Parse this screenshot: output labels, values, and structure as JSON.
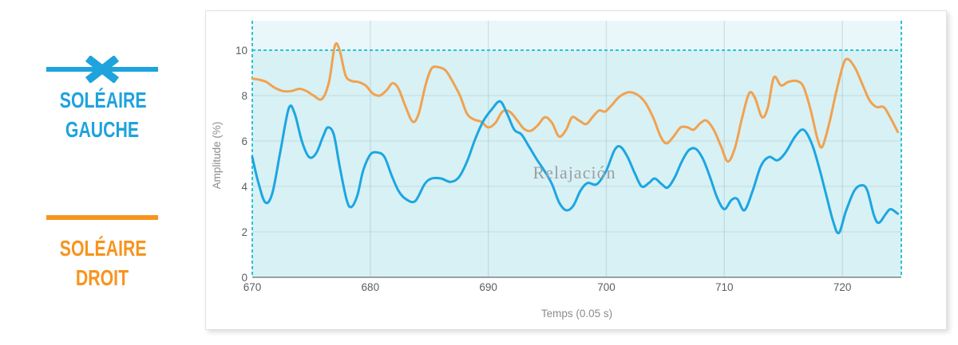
{
  "page": {
    "background": "#ffffff"
  },
  "legend": {
    "items": [
      {
        "id": "soleaire-gauche",
        "label_line1": "SOLÉAIRE",
        "label_line2": "GAUCHE",
        "color": "#1ea3dd",
        "marker": "x-on-line"
      },
      {
        "id": "soleaire-droit",
        "label_line1": "SOLÉAIRE",
        "label_line2": "DROIT",
        "color": "#f7941e",
        "marker": "line"
      }
    ]
  },
  "chart_data": {
    "type": "line",
    "title": "",
    "xlabel": "Temps (0.05 s)",
    "ylabel": "Amplitude (%)",
    "xlim": [
      670,
      725
    ],
    "ylim": [
      0,
      11.3
    ],
    "x_ticks": [
      670,
      680,
      690,
      700,
      710,
      720
    ],
    "y_ticks": [
      0,
      2,
      4,
      6,
      8,
      10
    ],
    "grid": true,
    "legend_position": "outside-left",
    "colors": {
      "axis_line": "#9aa0a0",
      "grid_line": "rgba(80,110,120,0.16)",
      "tick_label": "#5a5f63",
      "axis_title": "#8c8c8c"
    },
    "annotation_region": {
      "label": "Relajación",
      "x_start": 670,
      "x_end": 725,
      "y_threshold": 10,
      "fill_below_threshold": "#d8f1f5",
      "fill_above_threshold": "#e9f7fa",
      "border_color": "#2cc3d4",
      "border_style": "dashed",
      "label_color": "#9aa0a3",
      "label_x": 697.3,
      "label_y": 4.6
    },
    "series": [
      {
        "name": "Soléaire droit",
        "color": "#f0a250",
        "points": [
          [
            670,
            8.75
          ],
          [
            670.6,
            8.7
          ],
          [
            671.2,
            8.6
          ],
          [
            671.9,
            8.35
          ],
          [
            672.6,
            8.2
          ],
          [
            673.3,
            8.2
          ],
          [
            674.0,
            8.3
          ],
          [
            674.6,
            8.2
          ],
          [
            675.2,
            8.0
          ],
          [
            675.9,
            7.85
          ],
          [
            676.5,
            8.6
          ],
          [
            677.0,
            10.2
          ],
          [
            677.4,
            10.0
          ],
          [
            677.9,
            8.9
          ],
          [
            678.4,
            8.65
          ],
          [
            679.0,
            8.6
          ],
          [
            679.6,
            8.45
          ],
          [
            680.2,
            8.1
          ],
          [
            680.8,
            8.0
          ],
          [
            681.4,
            8.25
          ],
          [
            681.9,
            8.55
          ],
          [
            682.4,
            8.3
          ],
          [
            683.0,
            7.5
          ],
          [
            683.6,
            6.85
          ],
          [
            684.1,
            7.2
          ],
          [
            684.7,
            8.5
          ],
          [
            685.2,
            9.2
          ],
          [
            685.8,
            9.25
          ],
          [
            686.4,
            9.1
          ],
          [
            687.0,
            8.6
          ],
          [
            687.6,
            8.0
          ],
          [
            688.2,
            7.2
          ],
          [
            688.8,
            6.95
          ],
          [
            689.4,
            6.85
          ],
          [
            690.0,
            6.6
          ],
          [
            690.6,
            6.8
          ],
          [
            691.2,
            7.3
          ],
          [
            691.8,
            7.3
          ],
          [
            692.4,
            6.95
          ],
          [
            693.0,
            6.55
          ],
          [
            693.6,
            6.45
          ],
          [
            694.2,
            6.7
          ],
          [
            694.8,
            7.05
          ],
          [
            695.4,
            6.8
          ],
          [
            696.0,
            6.2
          ],
          [
            696.6,
            6.5
          ],
          [
            697.1,
            7.05
          ],
          [
            697.7,
            6.9
          ],
          [
            698.3,
            6.75
          ],
          [
            698.9,
            7.1
          ],
          [
            699.4,
            7.35
          ],
          [
            699.9,
            7.3
          ],
          [
            700.5,
            7.6
          ],
          [
            701.1,
            7.95
          ],
          [
            701.9,
            8.15
          ],
          [
            702.6,
            8.05
          ],
          [
            703.3,
            7.7
          ],
          [
            704.0,
            7.0
          ],
          [
            704.6,
            6.2
          ],
          [
            705.1,
            5.9
          ],
          [
            705.7,
            6.2
          ],
          [
            706.3,
            6.6
          ],
          [
            706.9,
            6.6
          ],
          [
            707.4,
            6.5
          ],
          [
            708.0,
            6.8
          ],
          [
            708.5,
            6.9
          ],
          [
            709.1,
            6.5
          ],
          [
            709.7,
            5.8
          ],
          [
            710.3,
            5.1
          ],
          [
            710.9,
            5.7
          ],
          [
            711.5,
            7.0
          ],
          [
            712.1,
            8.1
          ],
          [
            712.6,
            7.9
          ],
          [
            713.2,
            7.05
          ],
          [
            713.7,
            7.5
          ],
          [
            714.2,
            8.8
          ],
          [
            714.8,
            8.45
          ],
          [
            715.4,
            8.6
          ],
          [
            716.1,
            8.65
          ],
          [
            716.7,
            8.4
          ],
          [
            717.3,
            7.4
          ],
          [
            717.9,
            6.1
          ],
          [
            718.3,
            5.75
          ],
          [
            718.9,
            6.8
          ],
          [
            719.5,
            8.2
          ],
          [
            720.1,
            9.4
          ],
          [
            720.5,
            9.6
          ],
          [
            721.1,
            9.2
          ],
          [
            721.7,
            8.5
          ],
          [
            722.3,
            7.8
          ],
          [
            722.9,
            7.5
          ],
          [
            723.5,
            7.5
          ],
          [
            724.0,
            7.1
          ],
          [
            724.7,
            6.4
          ]
        ]
      },
      {
        "name": "Soléaire gauche",
        "color": "#1ca6e2",
        "points": [
          [
            670,
            5.3
          ],
          [
            670.5,
            4.2
          ],
          [
            671.1,
            3.3
          ],
          [
            671.7,
            3.7
          ],
          [
            672.4,
            5.6
          ],
          [
            673.1,
            7.45
          ],
          [
            673.6,
            7.2
          ],
          [
            674.2,
            6.0
          ],
          [
            674.8,
            5.3
          ],
          [
            675.4,
            5.45
          ],
          [
            676.0,
            6.2
          ],
          [
            676.4,
            6.6
          ],
          [
            676.9,
            6.3
          ],
          [
            677.4,
            4.9
          ],
          [
            678.0,
            3.4
          ],
          [
            678.4,
            3.1
          ],
          [
            678.9,
            3.6
          ],
          [
            679.4,
            4.7
          ],
          [
            680.0,
            5.4
          ],
          [
            680.6,
            5.5
          ],
          [
            681.2,
            5.3
          ],
          [
            681.8,
            4.5
          ],
          [
            682.4,
            3.8
          ],
          [
            683.0,
            3.45
          ],
          [
            683.8,
            3.35
          ],
          [
            684.6,
            4.1
          ],
          [
            685.2,
            4.35
          ],
          [
            686.0,
            4.35
          ],
          [
            686.8,
            4.2
          ],
          [
            687.5,
            4.4
          ],
          [
            688.2,
            5.1
          ],
          [
            688.9,
            6.1
          ],
          [
            689.6,
            6.9
          ],
          [
            690.3,
            7.4
          ],
          [
            691.0,
            7.75
          ],
          [
            691.6,
            7.2
          ],
          [
            692.2,
            6.5
          ],
          [
            692.8,
            6.3
          ],
          [
            693.4,
            5.8
          ],
          [
            694.1,
            5.2
          ],
          [
            694.8,
            4.65
          ],
          [
            695.4,
            4.1
          ],
          [
            696.0,
            3.3
          ],
          [
            696.6,
            2.95
          ],
          [
            697.2,
            3.15
          ],
          [
            697.8,
            3.8
          ],
          [
            698.4,
            4.15
          ],
          [
            699.2,
            4.1
          ],
          [
            700.0,
            4.7
          ],
          [
            700.7,
            5.6
          ],
          [
            701.2,
            5.75
          ],
          [
            701.8,
            5.3
          ],
          [
            702.4,
            4.6
          ],
          [
            703.0,
            4.0
          ],
          [
            703.6,
            4.15
          ],
          [
            704.1,
            4.35
          ],
          [
            704.7,
            4.1
          ],
          [
            705.2,
            3.95
          ],
          [
            705.8,
            4.4
          ],
          [
            706.4,
            5.1
          ],
          [
            707.0,
            5.6
          ],
          [
            707.6,
            5.65
          ],
          [
            708.2,
            5.2
          ],
          [
            708.8,
            4.4
          ],
          [
            709.4,
            3.5
          ],
          [
            710.0,
            3.0
          ],
          [
            710.6,
            3.4
          ],
          [
            711.1,
            3.45
          ],
          [
            711.7,
            2.95
          ],
          [
            712.4,
            3.8
          ],
          [
            713.1,
            4.9
          ],
          [
            713.8,
            5.3
          ],
          [
            714.5,
            5.15
          ],
          [
            715.2,
            5.5
          ],
          [
            716.0,
            6.2
          ],
          [
            716.7,
            6.5
          ],
          [
            717.4,
            5.9
          ],
          [
            718.0,
            4.9
          ],
          [
            718.6,
            3.7
          ],
          [
            719.2,
            2.5
          ],
          [
            719.7,
            1.95
          ],
          [
            720.3,
            2.9
          ],
          [
            721.0,
            3.8
          ],
          [
            721.6,
            4.05
          ],
          [
            722.1,
            3.85
          ],
          [
            722.7,
            2.7
          ],
          [
            723.1,
            2.4
          ],
          [
            723.7,
            2.8
          ],
          [
            724.1,
            3.0
          ],
          [
            724.7,
            2.8
          ]
        ]
      }
    ]
  }
}
